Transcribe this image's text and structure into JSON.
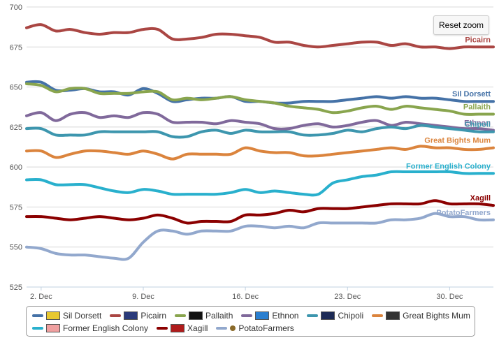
{
  "chart_data": {
    "type": "line",
    "title": "",
    "xlabel": "",
    "ylabel": "",
    "ylim": [
      525,
      700
    ],
    "yticks": [
      525,
      550,
      575,
      600,
      625,
      650,
      675,
      700
    ],
    "xlim": [
      1,
      33
    ],
    "xticks": [
      {
        "value": 2,
        "label": "2. Dec"
      },
      {
        "value": 9,
        "label": "9. Dec"
      },
      {
        "value": 16,
        "label": "16. Dec"
      },
      {
        "value": 23,
        "label": "23. Dec"
      },
      {
        "value": 30,
        "label": "30. Dec"
      }
    ],
    "x": [
      1,
      2,
      3,
      4,
      5,
      6,
      7,
      8,
      9,
      10,
      11,
      12,
      13,
      14,
      15,
      16,
      17,
      18,
      19,
      20,
      21,
      22,
      23,
      24,
      25,
      26,
      27,
      28,
      29,
      30,
      31,
      32,
      33
    ],
    "series": [
      {
        "name": "Sil Dorsett",
        "color": "#4572a7",
        "flag": "#e8c830",
        "end_label": "Sil Dorsett",
        "values": [
          653,
          653,
          648,
          648,
          649,
          647,
          647,
          645,
          649,
          646,
          641,
          642,
          643,
          643,
          644,
          641,
          641,
          640,
          640,
          641,
          641,
          641,
          642,
          643,
          644,
          643,
          644,
          643,
          643,
          642,
          641,
          641,
          641
        ]
      },
      {
        "name": "Picairn",
        "color": "#aa4643",
        "flag": "#2a3a7a",
        "end_label": "Picairn",
        "values": [
          687,
          689,
          685,
          686,
          684,
          683,
          684,
          684,
          686,
          686,
          680,
          680,
          681,
          683,
          683,
          682,
          681,
          678,
          678,
          676,
          675,
          676,
          677,
          678,
          678,
          676,
          677,
          675,
          675,
          674,
          675,
          675,
          675
        ]
      },
      {
        "name": "Pallaith",
        "color": "#89a54e",
        "flag": "#111111",
        "end_label": "Pallaith",
        "values": [
          652,
          651,
          647,
          649,
          649,
          646,
          646,
          646,
          647,
          647,
          642,
          643,
          642,
          643,
          644,
          642,
          641,
          640,
          638,
          637,
          636,
          634,
          635,
          637,
          638,
          636,
          638,
          637,
          636,
          635,
          633,
          633,
          633
        ]
      },
      {
        "name": "Ethnon",
        "color": "#80699b",
        "flag": "#2a7fd0",
        "end_label": "Ethnon",
        "values": [
          632,
          634,
          629,
          633,
          634,
          631,
          632,
          631,
          634,
          633,
          628,
          628,
          628,
          627,
          629,
          628,
          627,
          624,
          624,
          626,
          627,
          625,
          626,
          628,
          629,
          626,
          628,
          627,
          626,
          625,
          624,
          624,
          623
        ]
      },
      {
        "name": "Chipoli",
        "color": "#3d96ae",
        "flag": "#1c2a55",
        "end_label": "Chipoli",
        "values": [
          624,
          624,
          620,
          620,
          620,
          622,
          622,
          622,
          622,
          622,
          619,
          619,
          622,
          623,
          621,
          623,
          622,
          622,
          622,
          620,
          620,
          621,
          623,
          622,
          624,
          625,
          624,
          626,
          625,
          624,
          623,
          622,
          622
        ]
      },
      {
        "name": "Great Bights Mum",
        "color": "#db843d",
        "flag": "#333333",
        "end_label": "Great Bights Mum",
        "values": [
          610,
          610,
          606,
          608,
          610,
          610,
          609,
          608,
          610,
          608,
          605,
          608,
          608,
          608,
          608,
          612,
          610,
          609,
          609,
          607,
          607,
          608,
          609,
          610,
          611,
          612,
          611,
          613,
          612,
          612,
          611,
          611,
          612
        ]
      },
      {
        "name": "Former English Colony",
        "color": "#29b0cd",
        "flag": "#f0a0a0",
        "end_label": "Former English Colony",
        "values": [
          592,
          592,
          589,
          589,
          589,
          587,
          585,
          584,
          586,
          585,
          583,
          583,
          583,
          583,
          584,
          586,
          584,
          585,
          584,
          583,
          583,
          590,
          592,
          594,
          595,
          597,
          597,
          597,
          597,
          597,
          596,
          596,
          596
        ]
      },
      {
        "name": "Xagill",
        "color": "#8b0000",
        "flag": "#b01c1c",
        "end_label": "Xagill",
        "values": [
          569,
          569,
          568,
          567,
          568,
          569,
          568,
          567,
          568,
          570,
          568,
          565,
          566,
          566,
          566,
          570,
          570,
          571,
          573,
          572,
          574,
          574,
          574,
          575,
          576,
          577,
          577,
          577,
          579,
          577,
          577,
          577,
          576
        ]
      },
      {
        "name": "PotatoFarmers",
        "color": "#92a8cd",
        "flag": "#8a6a2a",
        "flag_type": "dot",
        "end_label": "PotatoFarmers",
        "values": [
          550,
          549,
          546,
          545,
          545,
          544,
          543,
          543,
          553,
          560,
          560,
          558,
          560,
          560,
          560,
          563,
          563,
          562,
          563,
          562,
          565,
          565,
          565,
          565,
          565,
          567,
          567,
          568,
          571,
          569,
          569,
          567,
          567
        ]
      }
    ]
  },
  "reset_zoom_label": "Reset zoom"
}
